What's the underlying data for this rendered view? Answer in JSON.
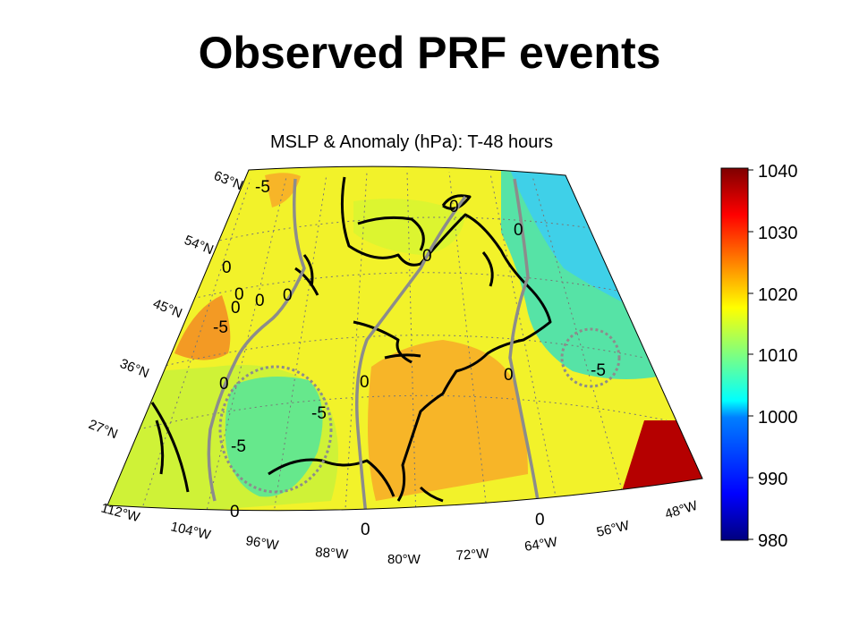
{
  "slide": {
    "title": "Observed PRF events"
  },
  "map": {
    "title": "MSLP & Anomaly (hPa): T-48 hours",
    "lat_labels": [
      "63°N",
      "54°N",
      "45°N",
      "36°N",
      "27°N"
    ],
    "lon_labels": [
      "112°W",
      "104°W",
      "96°W",
      "88°W",
      "80°W",
      "72°W",
      "64°W",
      "56°W",
      "48°W"
    ],
    "anomaly_contour_labels": [
      "-5",
      "0",
      "0",
      "0",
      "0",
      "0",
      "-5",
      "0",
      "0",
      "0",
      "-5",
      "-5",
      "0",
      "0",
      "0",
      "0",
      "0",
      "-5",
      "0"
    ]
  },
  "colorbar": {
    "ticks": [
      "1040",
      "1030",
      "1020",
      "1010",
      "1000",
      "990",
      "980"
    ],
    "range": [
      980,
      1040
    ],
    "colors": [
      "#00007f",
      "#0000ff",
      "#007fff",
      "#00ffff",
      "#7fff7f",
      "#ffff00",
      "#ff7f00",
      "#ff0000",
      "#7f0000"
    ]
  }
}
